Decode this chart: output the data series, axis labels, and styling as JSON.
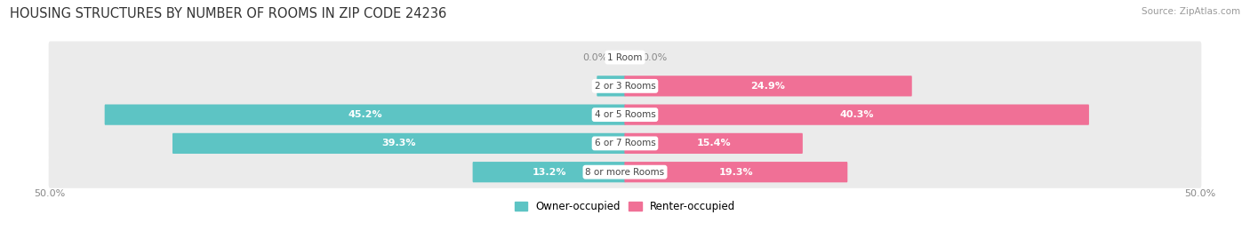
{
  "title": "HOUSING STRUCTURES BY NUMBER OF ROOMS IN ZIP CODE 24236",
  "source": "Source: ZipAtlas.com",
  "categories": [
    "1 Room",
    "2 or 3 Rooms",
    "4 or 5 Rooms",
    "6 or 7 Rooms",
    "8 or more Rooms"
  ],
  "owner_values": [
    0.0,
    2.4,
    45.2,
    39.3,
    13.2
  ],
  "renter_values": [
    0.0,
    24.9,
    40.3,
    15.4,
    19.3
  ],
  "owner_color": "#5DC4C4",
  "renter_color": "#F07096",
  "bg_row_color": "#EBEBEB",
  "bg_row_color_alt": "#E0E0E0",
  "axis_limit": 50.0,
  "bar_height": 0.62,
  "title_fontsize": 10.5,
  "label_fontsize": 8.0,
  "category_fontsize": 7.5,
  "source_fontsize": 7.5,
  "legend_fontsize": 8.5
}
